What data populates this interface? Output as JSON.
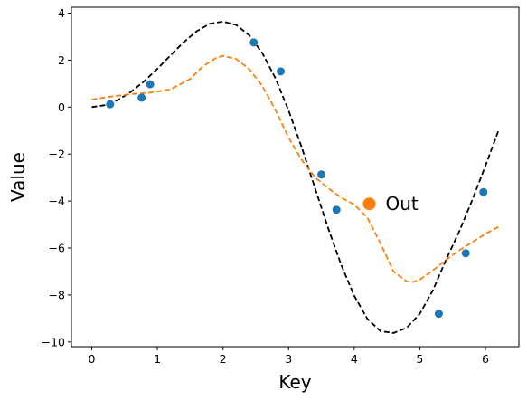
{
  "chart_data": {
    "type": "scatter",
    "xlabel": "Key",
    "ylabel": "Value",
    "xlim": [
      -0.31,
      6.51
    ],
    "ylim": [
      -10.2,
      4.25
    ],
    "xticks": [
      0,
      1,
      2,
      3,
      4,
      5,
      6
    ],
    "yticks": [
      4,
      2,
      0,
      -2,
      -4,
      -6,
      -8,
      -10
    ],
    "grid": false,
    "points": {
      "color": "#1f77b4",
      "x": [
        0.28,
        0.76,
        0.89,
        2.47,
        2.88,
        3.5,
        3.73,
        5.29,
        5.7,
        5.97
      ],
      "y": [
        0.12,
        0.4,
        0.97,
        2.75,
        1.52,
        -2.87,
        -4.37,
        -8.8,
        -6.22,
        -3.62
      ]
    },
    "true_curve": {
      "color": "#000000",
      "style": "dashed",
      "x": [
        0,
        0.2,
        0.4,
        0.6,
        0.8,
        1.0,
        1.2,
        1.4,
        1.6,
        1.8,
        2.0,
        2.2,
        2.4,
        2.6,
        2.8,
        3.0,
        3.2,
        3.4,
        3.6,
        3.8,
        4.0,
        4.2,
        4.4,
        4.6,
        4.8,
        5.0,
        5.2,
        5.4,
        5.6,
        5.8,
        6.0,
        6.2
      ],
      "y": [
        0.0,
        0.08,
        0.3,
        0.65,
        1.1,
        1.63,
        2.2,
        2.76,
        3.23,
        3.55,
        3.64,
        3.5,
        3.06,
        2.3,
        1.23,
        -0.14,
        -1.72,
        -3.43,
        -5.13,
        -6.7,
        -8.03,
        -9.01,
        -9.54,
        -9.62,
        -9.4,
        -8.8,
        -7.8,
        -6.5,
        -5.3,
        -3.95,
        -2.5,
        -1.0
      ]
    },
    "fit_curve": {
      "color": "#ff7f0e",
      "style": "dashed",
      "x": [
        0,
        0.3,
        0.6,
        0.9,
        1.2,
        1.5,
        1.7,
        1.9,
        2.0,
        2.2,
        2.4,
        2.6,
        2.8,
        3.0,
        3.2,
        3.4,
        3.6,
        3.8,
        4.0,
        4.2,
        4.4,
        4.6,
        4.8,
        4.9,
        5.0,
        5.2,
        5.4,
        5.6,
        5.8,
        6.0,
        6.2
      ],
      "y": [
        0.32,
        0.45,
        0.55,
        0.62,
        0.75,
        1.2,
        1.75,
        2.1,
        2.18,
        2.05,
        1.62,
        0.9,
        -0.12,
        -1.3,
        -2.25,
        -2.98,
        -3.45,
        -3.85,
        -4.15,
        -4.7,
        -5.8,
        -7.0,
        -7.42,
        -7.45,
        -7.35,
        -6.95,
        -6.5,
        -6.1,
        -5.75,
        -5.4,
        -5.1
      ]
    },
    "outlier": {
      "x": 4.23,
      "y": -4.12,
      "color": "#ff7f0e",
      "label": "Out"
    }
  }
}
